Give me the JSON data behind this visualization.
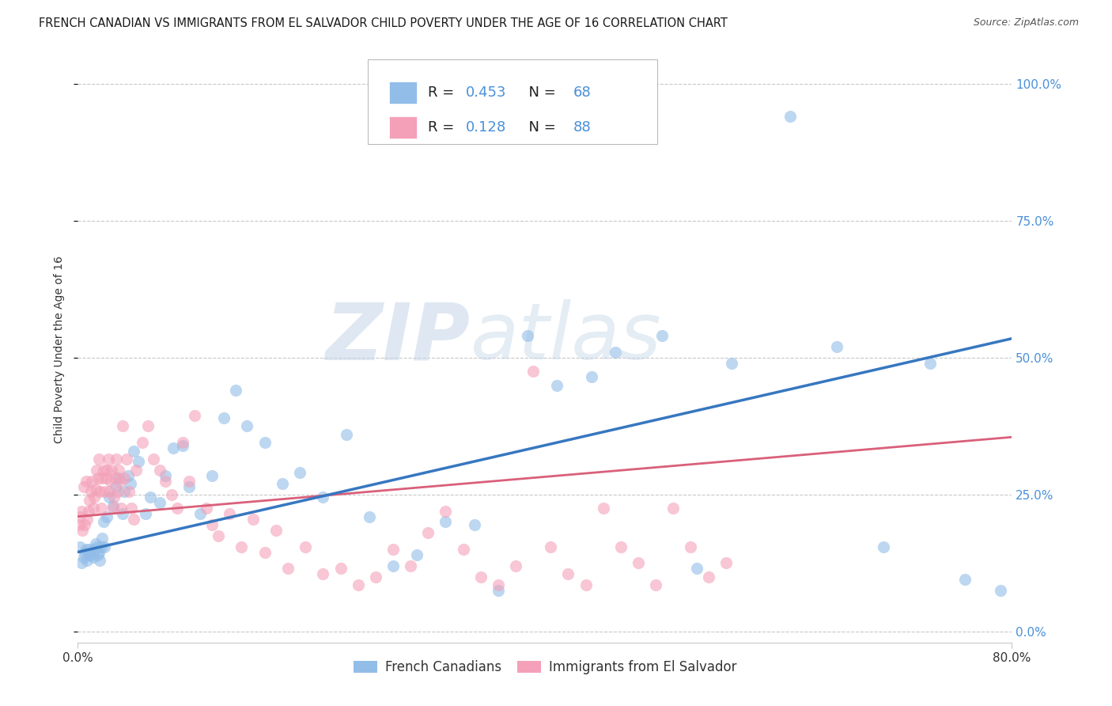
{
  "title": "FRENCH CANADIAN VS IMMIGRANTS FROM EL SALVADOR CHILD POVERTY UNDER THE AGE OF 16 CORRELATION CHART",
  "source": "Source: ZipAtlas.com",
  "ylabel": "Child Poverty Under the Age of 16",
  "xlim": [
    0.0,
    0.8
  ],
  "ylim": [
    -0.02,
    1.05
  ],
  "ytick_positions": [
    0.0,
    0.25,
    0.5,
    0.75,
    1.0
  ],
  "ytick_labels_right": [
    "0.0%",
    "25.0%",
    "50.0%",
    "75.0%",
    "100.0%"
  ],
  "xtick_positions": [
    0.0,
    0.8
  ],
  "xtick_labels": [
    "0.0%",
    "80.0%"
  ],
  "blue_R": "0.453",
  "blue_N": "68",
  "pink_R": "0.128",
  "pink_N": "88",
  "blue_label": "French Canadians",
  "pink_label": "Immigrants from El Salvador",
  "watermark": "ZIPatlas",
  "blue_scatter_x": [
    0.002,
    0.003,
    0.005,
    0.006,
    0.007,
    0.008,
    0.009,
    0.01,
    0.011,
    0.012,
    0.013,
    0.014,
    0.015,
    0.016,
    0.017,
    0.018,
    0.019,
    0.02,
    0.021,
    0.022,
    0.023,
    0.025,
    0.027,
    0.03,
    0.032,
    0.035,
    0.038,
    0.04,
    0.043,
    0.045,
    0.048,
    0.052,
    0.058,
    0.062,
    0.07,
    0.075,
    0.082,
    0.09,
    0.095,
    0.105,
    0.115,
    0.125,
    0.135,
    0.145,
    0.16,
    0.175,
    0.19,
    0.21,
    0.23,
    0.25,
    0.27,
    0.29,
    0.315,
    0.34,
    0.36,
    0.385,
    0.41,
    0.44,
    0.46,
    0.5,
    0.53,
    0.56,
    0.61,
    0.65,
    0.69,
    0.73,
    0.76,
    0.79
  ],
  "blue_scatter_y": [
    0.155,
    0.125,
    0.135,
    0.145,
    0.15,
    0.13,
    0.14,
    0.15,
    0.14,
    0.145,
    0.135,
    0.15,
    0.16,
    0.155,
    0.14,
    0.145,
    0.13,
    0.155,
    0.17,
    0.2,
    0.155,
    0.21,
    0.245,
    0.23,
    0.265,
    0.28,
    0.215,
    0.255,
    0.285,
    0.27,
    0.33,
    0.31,
    0.215,
    0.245,
    0.235,
    0.285,
    0.335,
    0.34,
    0.265,
    0.215,
    0.285,
    0.39,
    0.44,
    0.375,
    0.345,
    0.27,
    0.29,
    0.245,
    0.36,
    0.21,
    0.12,
    0.14,
    0.2,
    0.195,
    0.075,
    0.54,
    0.45,
    0.465,
    0.51,
    0.54,
    0.115,
    0.49,
    0.94,
    0.52,
    0.155,
    0.49,
    0.095,
    0.075
  ],
  "pink_scatter_x": [
    0.001,
    0.002,
    0.003,
    0.004,
    0.005,
    0.006,
    0.007,
    0.008,
    0.009,
    0.01,
    0.011,
    0.012,
    0.013,
    0.014,
    0.015,
    0.016,
    0.017,
    0.018,
    0.019,
    0.02,
    0.021,
    0.022,
    0.023,
    0.024,
    0.025,
    0.026,
    0.027,
    0.028,
    0.029,
    0.03,
    0.031,
    0.032,
    0.033,
    0.034,
    0.035,
    0.036,
    0.037,
    0.038,
    0.04,
    0.042,
    0.044,
    0.046,
    0.048,
    0.05,
    0.055,
    0.06,
    0.065,
    0.07,
    0.075,
    0.08,
    0.085,
    0.09,
    0.095,
    0.1,
    0.11,
    0.115,
    0.12,
    0.13,
    0.14,
    0.15,
    0.16,
    0.17,
    0.18,
    0.195,
    0.21,
    0.225,
    0.24,
    0.255,
    0.27,
    0.285,
    0.3,
    0.315,
    0.33,
    0.345,
    0.36,
    0.375,
    0.39,
    0.405,
    0.42,
    0.435,
    0.45,
    0.465,
    0.48,
    0.495,
    0.51,
    0.525,
    0.54,
    0.555
  ],
  "pink_scatter_y": [
    0.195,
    0.21,
    0.22,
    0.185,
    0.265,
    0.195,
    0.275,
    0.205,
    0.22,
    0.24,
    0.255,
    0.275,
    0.225,
    0.245,
    0.26,
    0.295,
    0.28,
    0.315,
    0.255,
    0.225,
    0.28,
    0.295,
    0.255,
    0.28,
    0.295,
    0.315,
    0.255,
    0.275,
    0.295,
    0.225,
    0.245,
    0.28,
    0.315,
    0.255,
    0.295,
    0.275,
    0.225,
    0.375,
    0.28,
    0.315,
    0.255,
    0.225,
    0.205,
    0.295,
    0.345,
    0.375,
    0.315,
    0.295,
    0.275,
    0.25,
    0.225,
    0.345,
    0.275,
    0.395,
    0.225,
    0.195,
    0.175,
    0.215,
    0.155,
    0.205,
    0.145,
    0.185,
    0.115,
    0.155,
    0.105,
    0.115,
    0.085,
    0.1,
    0.15,
    0.12,
    0.18,
    0.22,
    0.15,
    0.1,
    0.085,
    0.12,
    0.475,
    0.155,
    0.105,
    0.085,
    0.225,
    0.155,
    0.125,
    0.085,
    0.225,
    0.155,
    0.1,
    0.125
  ],
  "blue_line_x": [
    0.0,
    0.8
  ],
  "blue_line_y": [
    0.145,
    0.535
  ],
  "pink_line_x": [
    0.0,
    0.8
  ],
  "pink_line_y": [
    0.21,
    0.355
  ],
  "background_color": "#ffffff",
  "grid_color": "#c8c8c8",
  "blue_line_color": "#3777c0",
  "pink_line_color": "#d9607a",
  "scatter_blue_color": "#92bde8",
  "scatter_pink_color": "#f4a0b8",
  "right_tick_color": "#4a90d9",
  "text_color": "#333333",
  "title_fontsize": 10.5,
  "source_fontsize": 9,
  "axis_label_fontsize": 10,
  "tick_fontsize": 11,
  "legend_fontsize": 13
}
